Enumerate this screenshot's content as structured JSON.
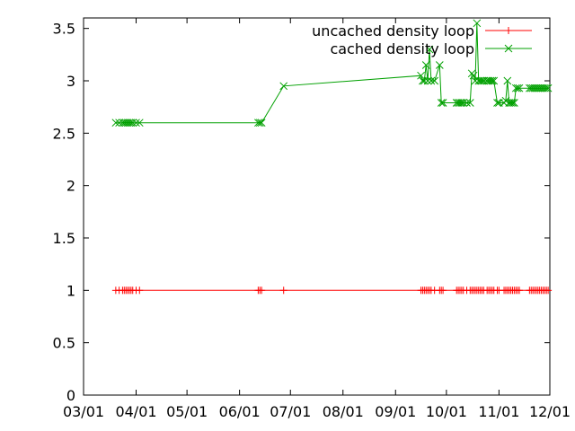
{
  "chart_data": {
    "type": "line",
    "title": "",
    "xlabel": "",
    "ylabel": "",
    "x_ticks": [
      "03/01",
      "04/01",
      "05/01",
      "06/01",
      "07/01",
      "08/01",
      "09/01",
      "10/01",
      "11/01",
      "12/01"
    ],
    "y_ticks": [
      "0",
      "0.5",
      "1",
      "1.5",
      "2",
      "2.5",
      "3",
      "3.5"
    ],
    "xlim": [
      "03/01",
      "12/01"
    ],
    "ylim": [
      0,
      3.6
    ],
    "grid": false,
    "legend_position": "top-right",
    "series": [
      {
        "name": "uncached density loop",
        "color": "#ff0000",
        "marker": "plus",
        "x": [
          "03/20",
          "03/22",
          "03/24",
          "03/25",
          "03/26",
          "03/27",
          "03/28",
          "03/29",
          "03/30",
          "04/01",
          "04/03",
          "06/12",
          "06/13",
          "06/14",
          "06/27",
          "09/16",
          "09/17",
          "09/18",
          "09/19",
          "09/20",
          "09/21",
          "09/22",
          "09/24",
          "09/27",
          "09/28",
          "09/29",
          "10/07",
          "10/08",
          "10/09",
          "10/10",
          "10/11",
          "10/13",
          "10/15",
          "10/16",
          "10/17",
          "10/18",
          "10/19",
          "10/20",
          "10/21",
          "10/22",
          "10/23",
          "10/25",
          "10/26",
          "10/27",
          "10/28",
          "10/29",
          "10/31",
          "11/01",
          "11/04",
          "11/05",
          "11/06",
          "11/07",
          "11/08",
          "11/09",
          "11/10",
          "11/11",
          "11/12",
          "11/13",
          "11/19",
          "11/20",
          "11/21",
          "11/22",
          "11/23",
          "11/24",
          "11/25",
          "11/26",
          "11/27",
          "11/28",
          "11/29",
          "11/30"
        ],
        "values": [
          1,
          1,
          1,
          1,
          1,
          1,
          1,
          1,
          1,
          1,
          1,
          1,
          1,
          1,
          1,
          1,
          1,
          1,
          1,
          1,
          1,
          1,
          1,
          1,
          1,
          1,
          1,
          1,
          1,
          1,
          1,
          1,
          1,
          1,
          1,
          1,
          1,
          1,
          1,
          1,
          1,
          1,
          1,
          1,
          1,
          1,
          1,
          1,
          1,
          1,
          1,
          1,
          1,
          1,
          1,
          1,
          1,
          1,
          1,
          1,
          1,
          1,
          1,
          1,
          1,
          1,
          1,
          1,
          1,
          1
        ]
      },
      {
        "name": "cached density loop",
        "color": "#00a000",
        "marker": "cross",
        "x": [
          "03/20",
          "03/22",
          "03/24",
          "03/25",
          "03/26",
          "03/27",
          "03/28",
          "03/29",
          "03/30",
          "04/01",
          "04/03",
          "06/12",
          "06/13",
          "06/14",
          "06/27",
          "09/16",
          "09/17",
          "09/18",
          "09/19",
          "09/20",
          "09/21",
          "09/22",
          "09/24",
          "09/27",
          "09/28",
          "09/29",
          "10/07",
          "10/08",
          "10/09",
          "10/10",
          "10/11",
          "10/13",
          "10/15",
          "10/16",
          "10/17",
          "10/18",
          "10/19",
          "10/20",
          "10/21",
          "10/22",
          "10/23",
          "10/25",
          "10/26",
          "10/27",
          "10/28",
          "10/29",
          "10/31",
          "11/01",
          "11/04",
          "11/05",
          "11/06",
          "11/07",
          "11/08",
          "11/09",
          "11/10",
          "11/11",
          "11/12",
          "11/13",
          "11/19",
          "11/20",
          "11/21",
          "11/22",
          "11/23",
          "11/24",
          "11/25",
          "11/26",
          "11/27",
          "11/28",
          "11/29",
          "11/30"
        ],
        "values": [
          2.6,
          2.6,
          2.6,
          2.6,
          2.6,
          2.6,
          2.6,
          2.6,
          2.6,
          2.6,
          2.6,
          2.6,
          2.6,
          2.6,
          2.95,
          3.05,
          3.0,
          3.0,
          3.15,
          3.0,
          3.3,
          3.0,
          3.0,
          3.15,
          2.79,
          2.79,
          2.79,
          2.79,
          2.79,
          2.79,
          2.79,
          2.79,
          2.79,
          3.07,
          3.05,
          3.0,
          3.55,
          3.0,
          3.0,
          3.0,
          3.0,
          3.0,
          3.0,
          3.0,
          3.0,
          3.0,
          2.79,
          2.79,
          2.79,
          2.81,
          3.0,
          2.79,
          2.79,
          2.79,
          2.79,
          2.93,
          2.93,
          2.93,
          2.93,
          2.93,
          2.93,
          2.93,
          2.93,
          2.93,
          2.93,
          2.93,
          2.93,
          2.93,
          2.93,
          2.93
        ]
      }
    ]
  }
}
